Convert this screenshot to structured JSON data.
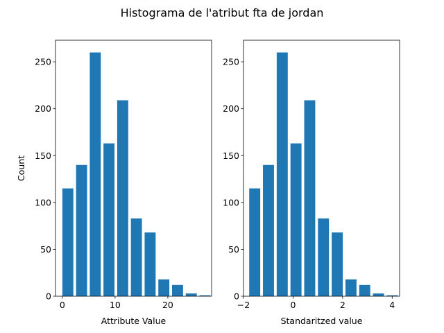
{
  "chart_data": {
    "title": "Histograma de l'atribut fta de jordan",
    "bar_color": "#1f77b4",
    "subplots": [
      {
        "type": "bar",
        "xlabel": "Attribute Value",
        "ylabel": "Count",
        "xlim": [
          -1.3,
          28.3
        ],
        "ylim": [
          0,
          273
        ],
        "xticks": [
          0,
          10,
          20
        ],
        "yticks": [
          0,
          50,
          100,
          150,
          200,
          250
        ],
        "bin_width": 2.61,
        "bin_starts": [
          0.0,
          2.6,
          5.2,
          7.8,
          10.4,
          13.0,
          15.6,
          18.2,
          20.8,
          23.4,
          26.0
        ],
        "values": [
          115,
          140,
          260,
          163,
          209,
          83,
          68,
          18,
          12,
          3,
          1
        ]
      },
      {
        "type": "bar",
        "xlabel": "Standaritzed value",
        "ylabel": "",
        "xlim": [
          -2.0,
          4.3
        ],
        "ylim": [
          0,
          273
        ],
        "xticks": [
          -2,
          0,
          2,
          4
        ],
        "yticks": [
          0,
          50,
          100,
          150,
          200,
          250
        ],
        "bin_width": 0.557,
        "bin_starts": [
          -1.77,
          -1.215,
          -0.66,
          -0.105,
          0.45,
          1.005,
          1.56,
          2.115,
          2.67,
          3.225,
          3.78
        ],
        "values": [
          115,
          140,
          260,
          163,
          209,
          83,
          68,
          18,
          12,
          3,
          1
        ]
      }
    ]
  }
}
